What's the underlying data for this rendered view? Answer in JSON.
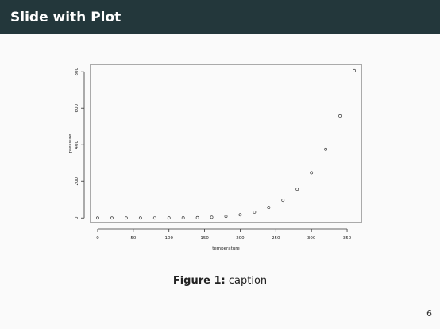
{
  "slide": {
    "title": "Slide with Plot",
    "page_number": "6"
  },
  "figure": {
    "label": "Figure 1:",
    "caption": "caption"
  },
  "chart_data": {
    "type": "scatter",
    "xlabel": "temperature",
    "ylabel": "pressure",
    "x_ticks": [
      0,
      50,
      100,
      150,
      200,
      250,
      300,
      350
    ],
    "y_ticks": [
      0,
      200,
      400,
      600,
      800
    ],
    "xlim": [
      -10,
      370
    ],
    "ylim": [
      -25,
      840
    ],
    "x": [
      0,
      20,
      40,
      60,
      80,
      100,
      120,
      140,
      160,
      180,
      200,
      220,
      240,
      260,
      280,
      300,
      320,
      340,
      360
    ],
    "y": [
      0.0002,
      0.0012,
      0.006,
      0.03,
      0.09,
      0.27,
      0.75,
      1.85,
      4.2,
      8.8,
      17.3,
      32.1,
      57,
      96,
      157,
      247,
      376,
      558,
      806
    ],
    "grid": false,
    "marker": "open-circle"
  }
}
